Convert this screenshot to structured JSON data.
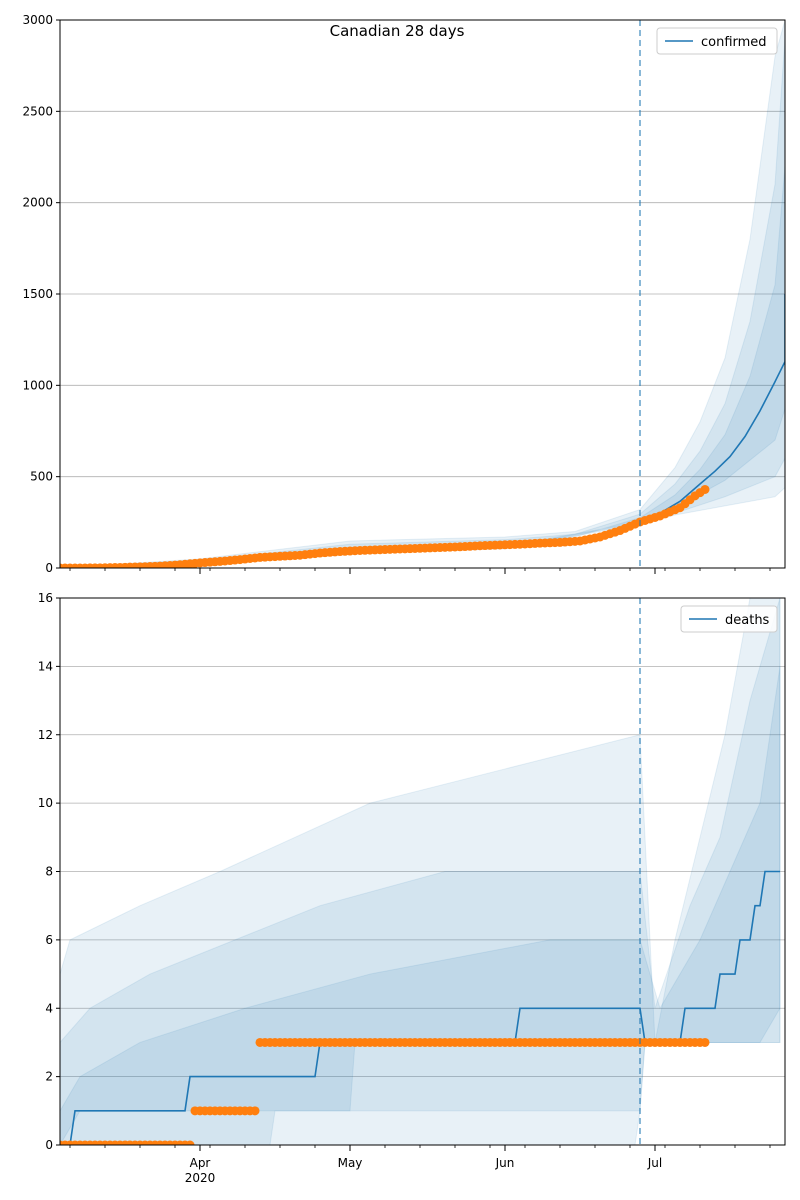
{
  "suptitle": "Canadian 28 days",
  "colors": {
    "model": "#1f77b4",
    "observed": "#ff7f0e",
    "band": "#1f77b4",
    "grid": "#b0b0b0",
    "forecast_line": "#1f77b4"
  },
  "x_axis": {
    "start": "2020-03-04",
    "end": "2020-07-27",
    "major_ticks": [
      {
        "date": "2020-04-01",
        "label": "Apr",
        "sublabel": "2020"
      },
      {
        "date": "2020-05-01",
        "label": "May",
        "sublabel": ""
      },
      {
        "date": "2020-06-01",
        "label": "Jun",
        "sublabel": ""
      },
      {
        "date": "2020-07-01",
        "label": "Jul",
        "sublabel": ""
      }
    ],
    "forecast_date": "2020-06-28"
  },
  "chart_data": [
    {
      "type": "line",
      "panel": "confirmed",
      "ylim": [
        0,
        3000
      ],
      "yticks": [
        0,
        500,
        1000,
        1500,
        2000,
        2500,
        3000
      ],
      "legend": "confirmed",
      "legend_position": "top-right",
      "grid": "horizontal",
      "model_line": [
        [
          "2020-03-04",
          0
        ],
        [
          "2020-03-15",
          3
        ],
        [
          "2020-03-25",
          12
        ],
        [
          "2020-04-01",
          30
        ],
        [
          "2020-04-10",
          50
        ],
        [
          "2020-04-20",
          72
        ],
        [
          "2020-05-01",
          92
        ],
        [
          "2020-05-15",
          105
        ],
        [
          "2020-06-01",
          125
        ],
        [
          "2020-06-10",
          140
        ],
        [
          "2020-06-18",
          170
        ],
        [
          "2020-06-24",
          215
        ],
        [
          "2020-06-28",
          255
        ],
        [
          "2020-07-02",
          300
        ],
        [
          "2020-07-06",
          365
        ],
        [
          "2020-07-10",
          460
        ],
        [
          "2020-07-13",
          530
        ],
        [
          "2020-07-16",
          610
        ],
        [
          "2020-07-19",
          720
        ],
        [
          "2020-07-22",
          860
        ],
        [
          "2020-07-25",
          1020
        ],
        [
          "2020-07-27",
          1130
        ],
        [
          "2020-07-30",
          1280
        ],
        [
          "2020-08-01",
          1500
        ]
      ],
      "bands": [
        {
          "lower": [
            [
              "2020-03-04",
              0
            ],
            [
              "2020-05-01",
              80
            ],
            [
              "2020-06-01",
              105
            ],
            [
              "2020-06-28",
              240
            ],
            [
              "2020-07-05",
              290
            ],
            [
              "2020-07-15",
              340
            ],
            [
              "2020-07-25",
              390
            ],
            [
              "2020-08-01",
              440
            ]
          ],
          "upper": [
            [
              "2020-03-04",
              2
            ],
            [
              "2020-04-01",
              50
            ],
            [
              "2020-05-01",
              148
            ],
            [
              "2020-06-01",
              170
            ],
            [
              "2020-06-15",
              200
            ],
            [
              "2020-06-28",
              320
            ],
            [
              "2020-07-05",
              550
            ],
            [
              "2020-07-10",
              800
            ],
            [
              "2020-07-15",
              1150
            ],
            [
              "2020-07-20",
              1800
            ],
            [
              "2020-07-25",
              2800
            ],
            [
              "2020-07-28",
              3000
            ],
            [
              "2020-08-01",
              3000
            ]
          ]
        },
        {
          "lower": [
            [
              "2020-03-04",
              0
            ],
            [
              "2020-05-01",
              86
            ],
            [
              "2020-06-01",
              112
            ],
            [
              "2020-06-28",
              245
            ],
            [
              "2020-07-05",
              300
            ],
            [
              "2020-07-15",
              390
            ],
            [
              "2020-07-25",
              500
            ],
            [
              "2020-08-01",
              600
            ]
          ],
          "upper": [
            [
              "2020-03-04",
              1
            ],
            [
              "2020-04-01",
              42
            ],
            [
              "2020-05-01",
              130
            ],
            [
              "2020-06-01",
              155
            ],
            [
              "2020-06-15",
              185
            ],
            [
              "2020-06-28",
              295
            ],
            [
              "2020-07-05",
              460
            ],
            [
              "2020-07-10",
              640
            ],
            [
              "2020-07-15",
              900
            ],
            [
              "2020-07-20",
              1350
            ],
            [
              "2020-07-25",
              2100
            ],
            [
              "2020-07-30",
              2900
            ],
            [
              "2020-08-01",
              3000
            ]
          ]
        },
        {
          "lower": [
            [
              "2020-03-04",
              0
            ],
            [
              "2020-05-01",
              90
            ],
            [
              "2020-06-01",
              118
            ],
            [
              "2020-06-28",
              250
            ],
            [
              "2020-07-05",
              330
            ],
            [
              "2020-07-15",
              480
            ],
            [
              "2020-07-25",
              700
            ],
            [
              "2020-08-01",
              870
            ]
          ],
          "upper": [
            [
              "2020-03-04",
              0
            ],
            [
              "2020-04-01",
              36
            ],
            [
              "2020-05-01",
              112
            ],
            [
              "2020-06-01",
              140
            ],
            [
              "2020-06-15",
              170
            ],
            [
              "2020-06-28",
              275
            ],
            [
              "2020-07-05",
              400
            ],
            [
              "2020-07-10",
              540
            ],
            [
              "2020-07-15",
              730
            ],
            [
              "2020-07-20",
              1050
            ],
            [
              "2020-07-25",
              1550
            ],
            [
              "2020-07-30",
              2200
            ],
            [
              "2020-08-01",
              2500
            ]
          ]
        }
      ],
      "observed": [
        [
          "2020-03-04",
          0
        ],
        [
          "2020-03-08",
          0
        ],
        [
          "2020-03-12",
          1
        ],
        [
          "2020-03-16",
          3
        ],
        [
          "2020-03-20",
          6
        ],
        [
          "2020-03-24",
          10
        ],
        [
          "2020-03-28",
          18
        ],
        [
          "2020-04-01",
          28
        ],
        [
          "2020-04-05",
          36
        ],
        [
          "2020-04-09",
          46
        ],
        [
          "2020-04-13",
          58
        ],
        [
          "2020-04-17",
          64
        ],
        [
          "2020-04-21",
          70
        ],
        [
          "2020-04-25",
          82
        ],
        [
          "2020-04-29",
          90
        ],
        [
          "2020-05-03",
          96
        ],
        [
          "2020-05-07",
          100
        ],
        [
          "2020-05-11",
          104
        ],
        [
          "2020-05-15",
          108
        ],
        [
          "2020-05-19",
          112
        ],
        [
          "2020-05-23",
          116
        ],
        [
          "2020-05-27",
          122
        ],
        [
          "2020-05-31",
          126
        ],
        [
          "2020-06-04",
          130
        ],
        [
          "2020-06-08",
          136
        ],
        [
          "2020-06-12",
          140
        ],
        [
          "2020-06-16",
          148
        ],
        [
          "2020-06-20",
          170
        ],
        [
          "2020-06-24",
          205
        ],
        [
          "2020-06-28",
          252
        ],
        [
          "2020-07-02",
          285
        ],
        [
          "2020-07-06",
          330
        ],
        [
          "2020-07-09",
          395
        ],
        [
          "2020-07-11",
          430
        ]
      ]
    },
    {
      "type": "line",
      "panel": "deaths",
      "ylim": [
        0,
        16
      ],
      "yticks": [
        0,
        2,
        4,
        6,
        8,
        10,
        12,
        14,
        16
      ],
      "legend": "deaths",
      "legend_position": "top-right",
      "grid": "horizontal",
      "model_line": [
        [
          "2020-03-04",
          0
        ],
        [
          "2020-03-06",
          0
        ],
        [
          "2020-03-07",
          1
        ],
        [
          "2020-03-29",
          1
        ],
        [
          "2020-03-30",
          2
        ],
        [
          "2020-04-24",
          2
        ],
        [
          "2020-04-25",
          3
        ],
        [
          "2020-06-03",
          3
        ],
        [
          "2020-06-04",
          4
        ],
        [
          "2020-06-28",
          4
        ],
        [
          "2020-06-29",
          3
        ],
        [
          "2020-07-06",
          3
        ],
        [
          "2020-07-07",
          4
        ],
        [
          "2020-07-13",
          4
        ],
        [
          "2020-07-14",
          5
        ],
        [
          "2020-07-17",
          5
        ],
        [
          "2020-07-18",
          6
        ],
        [
          "2020-07-20",
          6
        ],
        [
          "2020-07-21",
          7
        ],
        [
          "2020-07-22",
          7
        ],
        [
          "2020-07-23",
          8
        ],
        [
          "2020-07-26",
          8
        ]
      ],
      "bands": [
        {
          "lower": [
            [
              "2020-03-04",
              0
            ],
            [
              "2020-06-27",
              0
            ],
            [
              "2020-06-28",
              1
            ],
            [
              "2020-06-29",
              3
            ],
            [
              "2020-07-26",
              3
            ]
          ],
          "upper": [
            [
              "2020-03-04",
              5
            ],
            [
              "2020-03-06",
              6
            ],
            [
              "2020-03-20",
              7
            ],
            [
              "2020-04-05",
              8
            ],
            [
              "2020-04-20",
              9
            ],
            [
              "2020-05-05",
              10
            ],
            [
              "2020-06-01",
              11
            ],
            [
              "2020-06-28",
              12
            ],
            [
              "2020-07-01",
              3
            ],
            [
              "2020-07-05",
              6
            ],
            [
              "2020-07-10",
              9
            ],
            [
              "2020-07-15",
              12
            ],
            [
              "2020-07-20",
              16
            ],
            [
              "2020-07-26",
              16
            ]
          ]
        },
        {
          "lower": [
            [
              "2020-03-04",
              0
            ],
            [
              "2020-04-15",
              0
            ],
            [
              "2020-04-16",
              1
            ],
            [
              "2020-06-28",
              1
            ],
            [
              "2020-06-29",
              3
            ],
            [
              "2020-07-26",
              3
            ]
          ],
          "upper": [
            [
              "2020-03-04",
              3
            ],
            [
              "2020-03-10",
              4
            ],
            [
              "2020-03-22",
              5
            ],
            [
              "2020-04-08",
              6
            ],
            [
              "2020-04-25",
              7
            ],
            [
              "2020-05-20",
              8
            ],
            [
              "2020-06-28",
              8
            ],
            [
              "2020-07-01",
              4
            ],
            [
              "2020-07-08",
              7
            ],
            [
              "2020-07-14",
              9
            ],
            [
              "2020-07-20",
              13
            ],
            [
              "2020-07-26",
              16
            ]
          ]
        },
        {
          "lower": [
            [
              "2020-03-04",
              0
            ],
            [
              "2020-03-08",
              1
            ],
            [
              "2020-05-01",
              1
            ],
            [
              "2020-05-02",
              3
            ],
            [
              "2020-06-28",
              3
            ],
            [
              "2020-07-22",
              3
            ],
            [
              "2020-07-26",
              4
            ]
          ],
          "upper": [
            [
              "2020-03-04",
              1
            ],
            [
              "2020-03-08",
              2
            ],
            [
              "2020-03-20",
              3
            ],
            [
              "2020-04-10",
              4
            ],
            [
              "2020-05-05",
              5
            ],
            [
              "2020-06-10",
              6
            ],
            [
              "2020-06-28",
              6
            ],
            [
              "2020-07-02",
              4
            ],
            [
              "2020-07-10",
              6
            ],
            [
              "2020-07-16",
              8
            ],
            [
              "2020-07-22",
              10
            ],
            [
              "2020-07-26",
              14
            ]
          ]
        }
      ],
      "observed_segments": [
        {
          "start": "2020-03-04",
          "end": "2020-03-30",
          "value": 0
        },
        {
          "start": "2020-03-31",
          "end": "2020-04-12",
          "value": 1
        },
        {
          "start": "2020-04-13",
          "end": "2020-07-11",
          "value": 3
        }
      ]
    }
  ]
}
